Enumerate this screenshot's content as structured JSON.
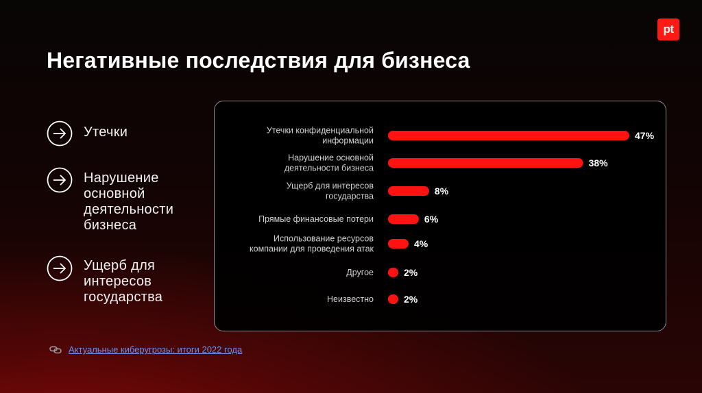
{
  "logo": {
    "text": "pt",
    "icon": "pt-logo-icon",
    "color": "#ff1a14"
  },
  "title": "Негативные последствия для бизнеса",
  "bullets": [
    {
      "icon": "arrow-right-circle-icon",
      "text": "Утечки"
    },
    {
      "icon": "arrow-right-circle-icon",
      "text": "Нарушение\nосновной\nдеятельности\nбизнеса"
    },
    {
      "icon": "arrow-right-circle-icon",
      "text": "Ущерб для\nинтересов\nгосударства"
    }
  ],
  "chart_data": {
    "type": "bar",
    "orientation": "horizontal",
    "categories": [
      [
        "Утечки конфиденциальной",
        "информации"
      ],
      [
        "Нарушение основной",
        "деятельности бизнеса"
      ],
      [
        "Ущерб для интересов",
        "государства"
      ],
      [
        "Прямые финансовые потери"
      ],
      [
        "Использование ресурсов",
        "компании для проведения атак"
      ],
      [
        "Другое"
      ],
      [
        "Неизвестно"
      ]
    ],
    "values": [
      47,
      38,
      8,
      6,
      4,
      2,
      2
    ],
    "value_labels": [
      "47%",
      "38%",
      "8%",
      "6%",
      "4%",
      "2%",
      "2%"
    ],
    "unit": "%",
    "bar_color": "#ff1212",
    "xlim": [
      0,
      47
    ],
    "grid": false,
    "title": "",
    "xlabel": "",
    "ylabel": ""
  },
  "source": {
    "icon": "link-icon",
    "text": "Актуальные киберугрозы: итоги 2022 года",
    "color": "#6e8ff0"
  }
}
